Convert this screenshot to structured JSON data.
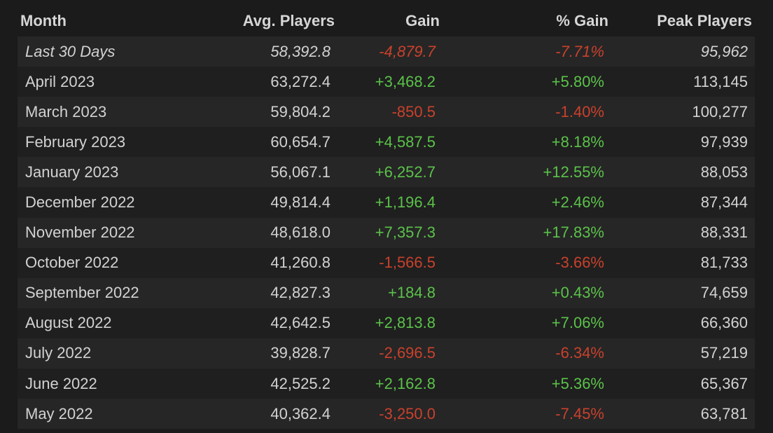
{
  "table": {
    "headers": [
      "Month",
      "Avg. Players",
      "Gain",
      "% Gain",
      "Peak Players"
    ],
    "rows": [
      [
        "Last 30 Days",
        "58,392.8",
        "-4,879.7",
        "-7.71%",
        "95,962"
      ],
      [
        "April 2023",
        "63,272.4",
        "+3,468.2",
        "+5.80%",
        "113,145"
      ],
      [
        "March 2023",
        "59,804.2",
        "-850.5",
        "-1.40%",
        "100,277"
      ],
      [
        "February 2023",
        "60,654.7",
        "+4,587.5",
        "+8.18%",
        "97,939"
      ],
      [
        "January 2023",
        "56,067.1",
        "+6,252.7",
        "+12.55%",
        "88,053"
      ],
      [
        "December 2022",
        "49,814.4",
        "+1,196.4",
        "+2.46%",
        "87,344"
      ],
      [
        "November 2022",
        "48,618.0",
        "+7,357.3",
        "+17.83%",
        "88,331"
      ],
      [
        "October 2022",
        "41,260.8",
        "-1,566.5",
        "-3.66%",
        "81,733"
      ],
      [
        "September 2022",
        "42,827.3",
        "+184.8",
        "+0.43%",
        "74,659"
      ],
      [
        "August 2022",
        "42,642.5",
        "+2,813.8",
        "+7.06%",
        "66,360"
      ],
      [
        "July 2022",
        "39,828.7",
        "-2,696.5",
        "-6.34%",
        "57,219"
      ],
      [
        "June 2022",
        "42,525.2",
        "+2,162.8",
        "+5.36%",
        "65,367"
      ],
      [
        "May 2022",
        "40,362.4",
        "-3,250.0",
        "-7.45%",
        "63,781"
      ]
    ]
  }
}
